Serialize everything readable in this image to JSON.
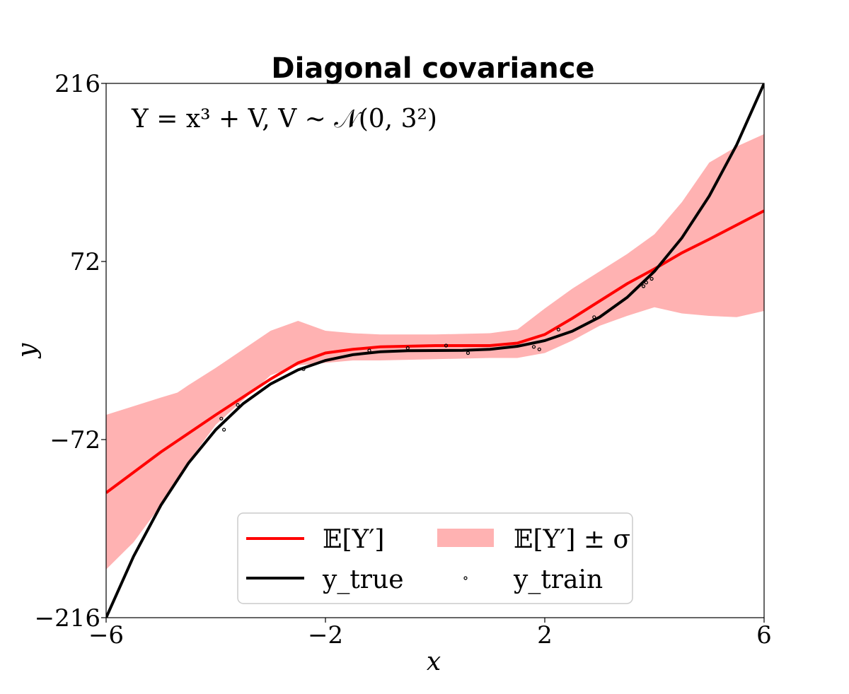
{
  "chart_data": {
    "type": "line",
    "title": "Diagonal covariance",
    "xlabel": "x",
    "ylabel": "y",
    "xlim": [
      -6,
      6
    ],
    "ylim": [
      -216,
      216
    ],
    "xticks": [
      -6,
      -2,
      2,
      6
    ],
    "yticks": [
      -216,
      -72,
      72,
      216
    ],
    "xtick_labels": [
      "−6",
      "−2",
      "2",
      "6"
    ],
    "ytick_labels": [
      "−216",
      "−72",
      "72",
      "216"
    ],
    "annotation": "Y = x³ + V,  V ~ 𝒩(0, 3²)",
    "grid": false,
    "legend_position": "bottom-center",
    "series": [
      {
        "name": "𝔼[Y′]",
        "kind": "mean",
        "color": "#ff0000",
        "x": [
          -6,
          -5,
          -4,
          -3,
          -2.5,
          -2,
          -1.5,
          -1,
          0,
          1,
          1.5,
          2,
          2.5,
          3,
          3.5,
          4,
          4.5,
          5,
          6
        ],
        "y": [
          -115,
          -82,
          -52,
          -23,
          -10,
          -2,
          1,
          3,
          4,
          4,
          6,
          13,
          26,
          40,
          54,
          66,
          79,
          90,
          113
        ]
      },
      {
        "name": "𝔼[Y′] ± σ",
        "kind": "band",
        "color": "#ffb2b2",
        "x": [
          -6,
          -5.5,
          -5,
          -4.7,
          -4.5,
          -4,
          -3.5,
          -3,
          -2.5,
          -2,
          -1.5,
          -1,
          0,
          1,
          1.5,
          2,
          2.5,
          3,
          3.5,
          4,
          4.5,
          5,
          5.5,
          6
        ],
        "upper": [
          -52,
          -45,
          -38,
          -34,
          -28,
          -14,
          1,
          16,
          24,
          16,
          14,
          13,
          13,
          14,
          17,
          34,
          50,
          64,
          78,
          94,
          120,
          152,
          165,
          175
        ],
        "lower": [
          -177,
          -155,
          -125,
          -104,
          -90,
          -60,
          -40,
          -20,
          -12,
          -10,
          -8,
          -8,
          -7,
          -6,
          -6,
          -2,
          8,
          20,
          28,
          35,
          30,
          28,
          27,
          32
        ]
      },
      {
        "name": "y_true",
        "kind": "true",
        "color": "#000000",
        "x": [
          -6,
          -5.5,
          -5,
          -4.5,
          -4,
          -3.5,
          -3,
          -2.5,
          -2,
          -1.5,
          -1,
          -0.5,
          0,
          0.5,
          1,
          1.5,
          2,
          2.5,
          3,
          3.5,
          4,
          4.5,
          5,
          5.5,
          6
        ],
        "y": [
          -216,
          -166.4,
          -125,
          -91.1,
          -64,
          -42.9,
          -27,
          -15.6,
          -8,
          -3.4,
          -1,
          -0.1,
          0,
          0.1,
          1,
          3.4,
          8,
          15.6,
          27,
          42.9,
          64,
          91.1,
          125,
          166.4,
          216
        ]
      },
      {
        "name": "y_train",
        "kind": "train",
        "color": "#000000",
        "x": [
          -3.9,
          -3.85,
          -3.6,
          -2.4,
          -1.2,
          -0.5,
          0.2,
          0.6,
          1.8,
          1.9,
          2.25,
          2.9,
          3.8,
          3.85,
          3.95
        ],
        "y": [
          -55,
          -64,
          -44,
          -15,
          0,
          2,
          4,
          -2,
          3,
          1,
          17,
          27,
          52,
          55,
          58
        ]
      }
    ]
  },
  "legend": {
    "mean_label": "𝔼[Y′]",
    "band_label": "𝔼[Y′] ± σ",
    "true_label": "y_true",
    "train_label": "y_train"
  }
}
